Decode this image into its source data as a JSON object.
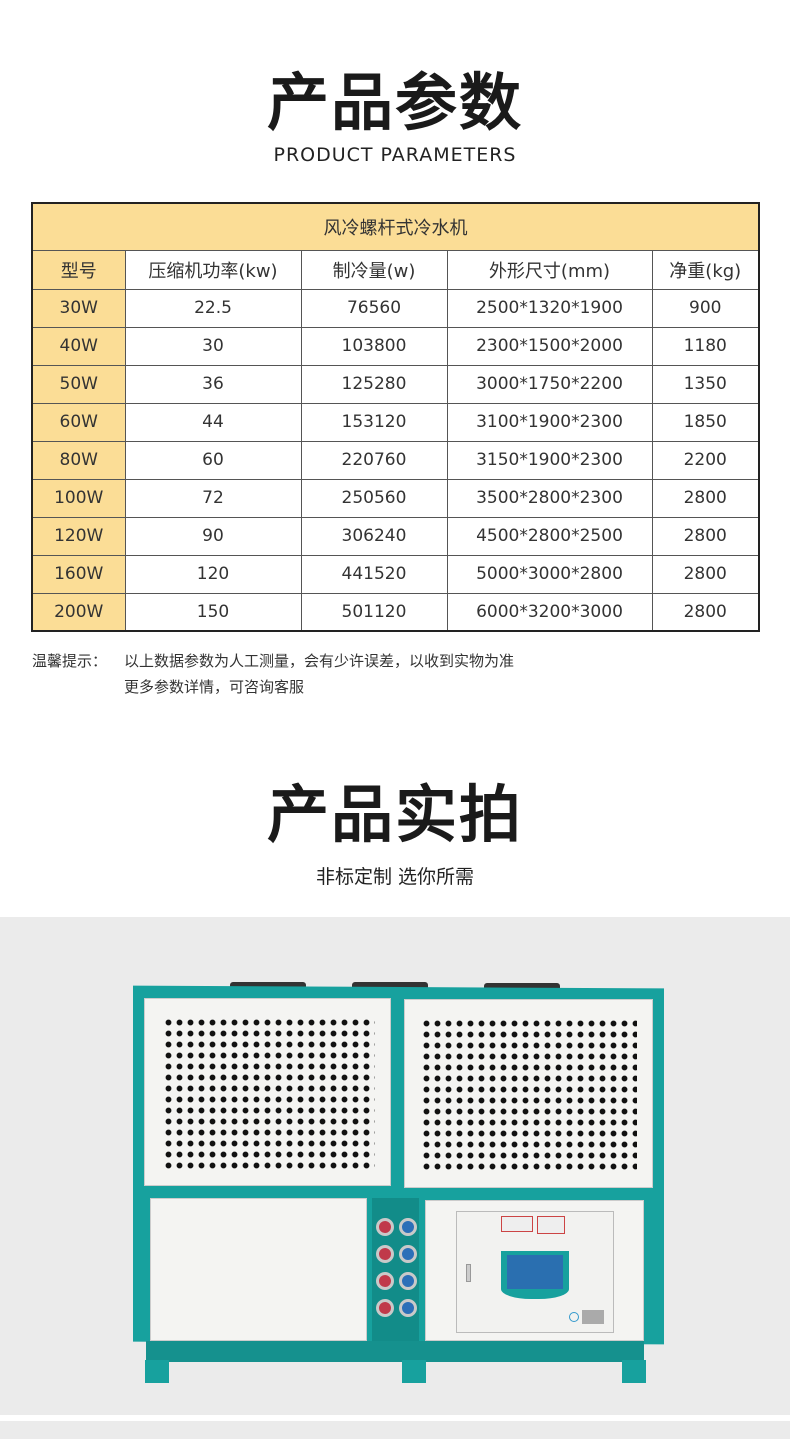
{
  "section1": {
    "title": "产品参数",
    "subtitle": "PRODUCT PARAMETERS"
  },
  "table": {
    "title": "风冷螺杆式冷水机",
    "headers": [
      "型号",
      "压缩机功率(kw)",
      "制冷量(w)",
      "外形尺寸(mm)",
      "净重(kg)"
    ],
    "rows": [
      [
        "30W",
        "22.5",
        "76560",
        "2500*1320*1900",
        "900"
      ],
      [
        "40W",
        "30",
        "103800",
        "2300*1500*2000",
        "1180"
      ],
      [
        "50W",
        "36",
        "125280",
        "3000*1750*2200",
        "1350"
      ],
      [
        "60W",
        "44",
        "153120",
        "3100*1900*2300",
        "1850"
      ],
      [
        "80W",
        "60",
        "220760",
        "3150*1900*2300",
        "2200"
      ],
      [
        "100W",
        "72",
        "250560",
        "3500*2800*2300",
        "2800"
      ],
      [
        "120W",
        "90",
        "306240",
        "4500*2800*2500",
        "2800"
      ],
      [
        "160W",
        "120",
        "441520",
        "5000*3000*2800",
        "2800"
      ],
      [
        "200W",
        "150",
        "501120",
        "6000*3200*3000",
        "2800"
      ]
    ],
    "colors": {
      "highlight": "#fbdd96"
    }
  },
  "note": {
    "label": "温馨提示：",
    "line1": "以上数据参数为人工测量，会有少许误差，以收到实物为准",
    "line2": "更多参数详情，可咨询客服"
  },
  "section2": {
    "title": "产品实拍",
    "subtitle": "非标定制 选你所需"
  },
  "photo": {
    "frame_color": "#17a19e",
    "background": "#ebebeb"
  }
}
